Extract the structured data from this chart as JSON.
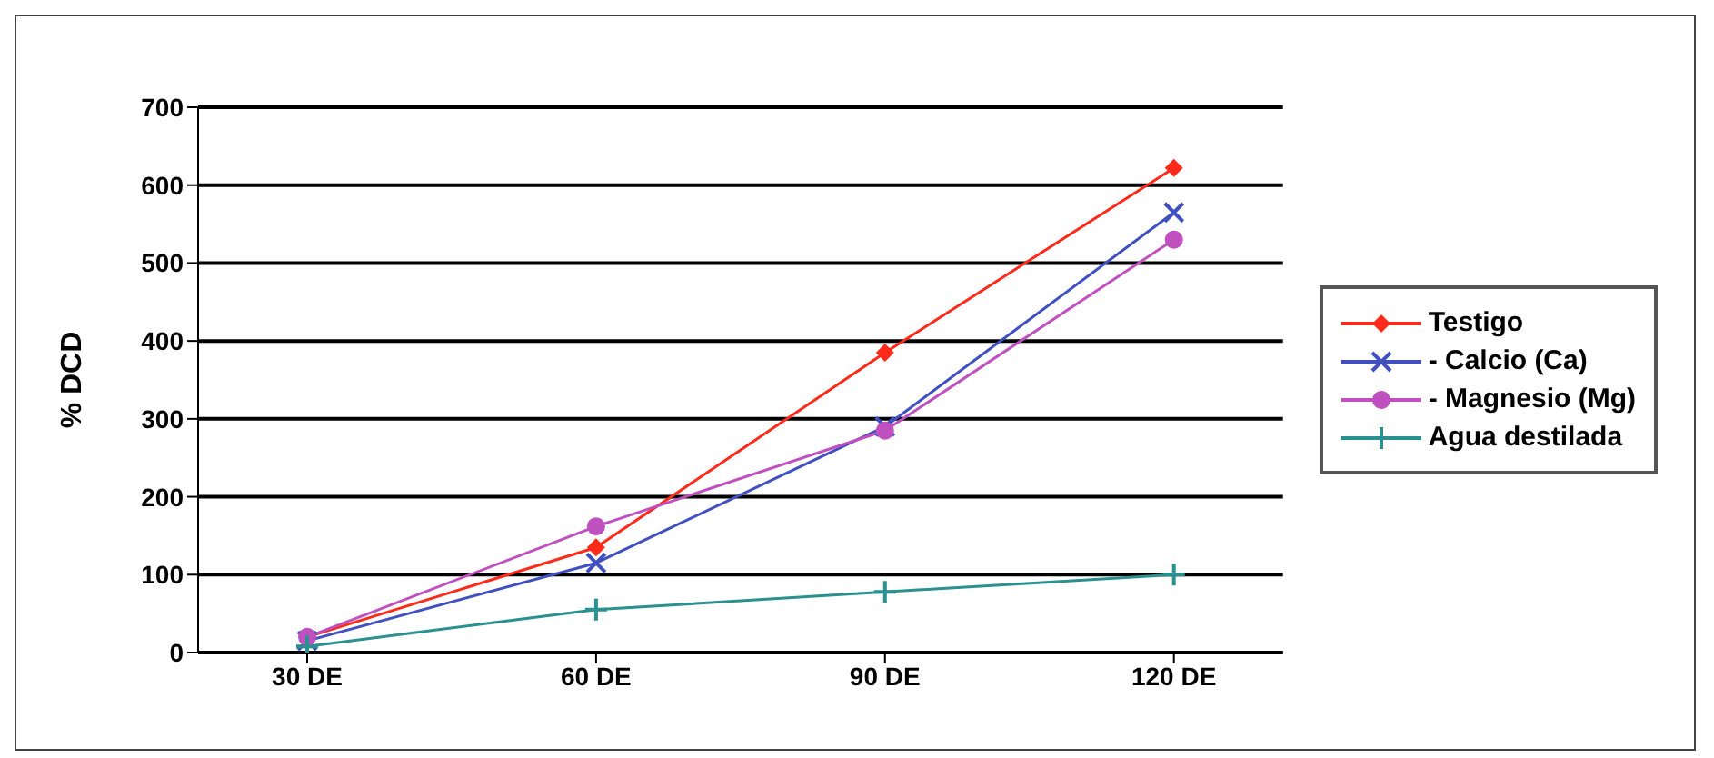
{
  "chart_data": {
    "type": "line",
    "ylabel": "% DCD",
    "categories": [
      "30 DE",
      "60 DE",
      "90 DE",
      "120 DE"
    ],
    "series": [
      {
        "name": "Testigo",
        "color": "#ff2a1a",
        "marker": "diamond",
        "values": [
          20,
          135,
          385,
          622
        ]
      },
      {
        "name": "- Calcio (Ca)",
        "color": "#4050c0",
        "marker": "cross",
        "values": [
          15,
          115,
          290,
          565
        ]
      },
      {
        "name": "- Magnesio (Mg)",
        "color": "#c050c0",
        "marker": "circle",
        "values": [
          20,
          162,
          285,
          530
        ]
      },
      {
        "name": "Agua destilada",
        "color": "#2a9090",
        "marker": "plus",
        "values": [
          8,
          55,
          78,
          100
        ]
      }
    ],
    "ylim": [
      0,
      700
    ],
    "yticks": [
      0,
      100,
      200,
      300,
      400,
      500,
      600,
      700
    ],
    "grid": "y",
    "legend": "right"
  }
}
